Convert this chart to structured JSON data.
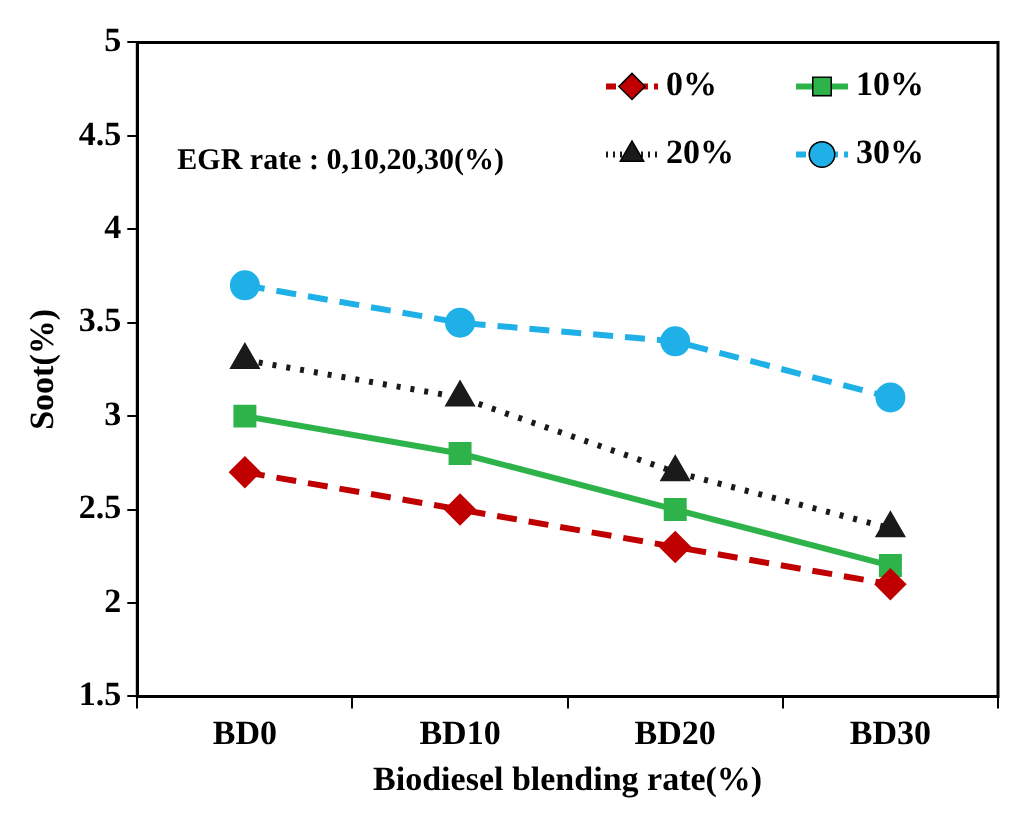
{
  "chart_data": {
    "type": "line",
    "xlabel": "Biodiesel blending rate(%)",
    "ylabel": "Soot(%)",
    "categories": [
      "BD0",
      "BD10",
      "BD20",
      "BD30"
    ],
    "series": [
      {
        "name": "0%",
        "color": "#c00000",
        "values": [
          2.7,
          2.5,
          2.3,
          2.1
        ],
        "line_style": "dashed",
        "marker": "diamond"
      },
      {
        "name": "10%",
        "color": "#2eb34a",
        "values": [
          3.0,
          2.8,
          2.5,
          2.2
        ],
        "line_style": "solid",
        "marker": "square"
      },
      {
        "name": "20%",
        "color": "#1a1a1a",
        "values": [
          3.3,
          3.1,
          2.7,
          2.4
        ],
        "line_style": "dotted",
        "marker": "triangle"
      },
      {
        "name": "30%",
        "color": "#1fb0e8",
        "values": [
          3.7,
          3.5,
          3.4,
          3.1
        ],
        "line_style": "dashed",
        "marker": "circle"
      }
    ],
    "ylim": [
      1.5,
      5
    ],
    "yticks": [
      1.5,
      2,
      2.5,
      3,
      3.5,
      4,
      4.5,
      5
    ],
    "grid": false,
    "legend": "top right",
    "annotations": [
      "EGR rate : 0,10,20,30(%)"
    ]
  }
}
